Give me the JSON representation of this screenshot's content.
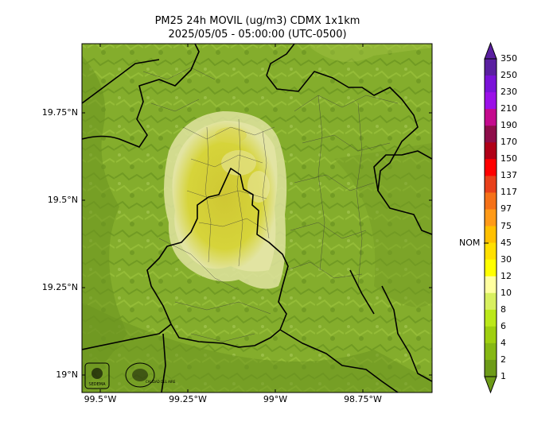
{
  "title_line1": "PM25 24h MOVIL (ug/m3) CDMX 1x1km",
  "title_line2": "2025/05/05 - 05:00:00 (UTC-0500)",
  "lat_labels": [
    "19.75°N",
    "19.5°N",
    "19.25°N",
    "19°N"
  ],
  "lon_labels": [
    "99.5°W",
    "99.25°W",
    "99°W",
    "98.75°W"
  ],
  "colorbar": {
    "reference_label": "NOM",
    "levels": [
      "350",
      "250",
      "230",
      "210",
      "190",
      "170",
      "150",
      "137",
      "117",
      "97",
      "75",
      "45",
      "30",
      "12",
      "10",
      "8",
      "6",
      "4",
      "2",
      "1"
    ],
    "colors": [
      "#5a1fa0",
      "#7a12d8",
      "#9b10e8",
      "#c40a8e",
      "#8e0d4a",
      "#b00018",
      "#ff0000",
      "#e8401a",
      "#f57118",
      "#ff9a18",
      "#ffc000",
      "#ffe000",
      "#ffff00",
      "#ffffa0",
      "#d8f060",
      "#bbe81a",
      "#9fcf10",
      "#86b814",
      "#6d9b18"
    ]
  },
  "logos": {
    "left": "SEDEMA",
    "right": "CALIDAD DEL AIRE"
  },
  "palette": {
    "terrain": "#84ad2c",
    "plume": "#d6d43a",
    "plume_core": "#c9c331",
    "plume_edge": "#e4e7a0",
    "border": "#000000"
  }
}
